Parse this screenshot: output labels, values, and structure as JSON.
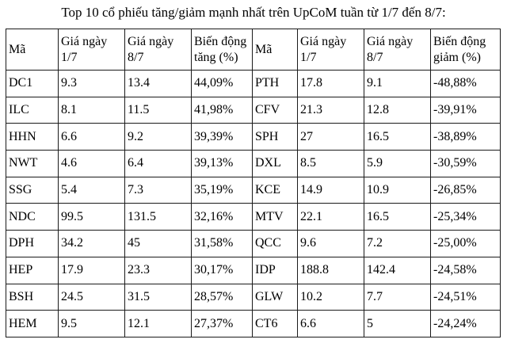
{
  "title": "Top 10 cổ phiếu tăng/giảm mạnh nhất trên UpCoM tuần từ 1/7 đến 8/7:",
  "table": {
    "headers": [
      "Mã",
      "Giá ngày\n1/7",
      "Giá ngày\n8/7",
      "Biến động\ntăng (%)",
      "Mã",
      "Giá ngày\n1/7",
      "Giá ngày\n8/7",
      "Biến động\ngiảm (%)"
    ],
    "rows": [
      [
        "DC1",
        "9.3",
        "13.4",
        "44,09%",
        "PTH",
        "17.8",
        "9.1",
        "-48,88%"
      ],
      [
        "ILC",
        "8.1",
        "11.5",
        "41,98%",
        "CFV",
        "21.3",
        "12.8",
        "-39,91%"
      ],
      [
        "HHN",
        "6.6",
        "9.2",
        "39,39%",
        "SPH",
        "27",
        "16.5",
        "-38,89%"
      ],
      [
        "NWT",
        "4.6",
        "6.4",
        "39,13%",
        "DXL",
        "8.5",
        "5.9",
        "-30,59%"
      ],
      [
        "SSG",
        "5.4",
        "7.3",
        "35,19%",
        "KCE",
        "14.9",
        "10.9",
        "-26,85%"
      ],
      [
        "NDC",
        "99.5",
        "131.5",
        "32,16%",
        "MTV",
        "22.1",
        "16.5",
        "-25,34%"
      ],
      [
        "DPH",
        "34.2",
        "45",
        "31,58%",
        "QCC",
        "9.6",
        "7.2",
        "-25,00%"
      ],
      [
        "HEP",
        "17.9",
        "23.3",
        "30,17%",
        "IDP",
        "188.8",
        "142.4",
        "-24,58%"
      ],
      [
        "BSH",
        "24.5",
        "31.5",
        "28,57%",
        "GLW",
        "10.2",
        "7.7",
        "-24,51%"
      ],
      [
        "HEM",
        "9.5",
        "12.1",
        "27,37%",
        "CT6",
        "6.6",
        "5",
        "-24,24%"
      ]
    ],
    "text_color": "#000000",
    "border_color": "#1a1a1a",
    "background_color": "#ffffff"
  }
}
